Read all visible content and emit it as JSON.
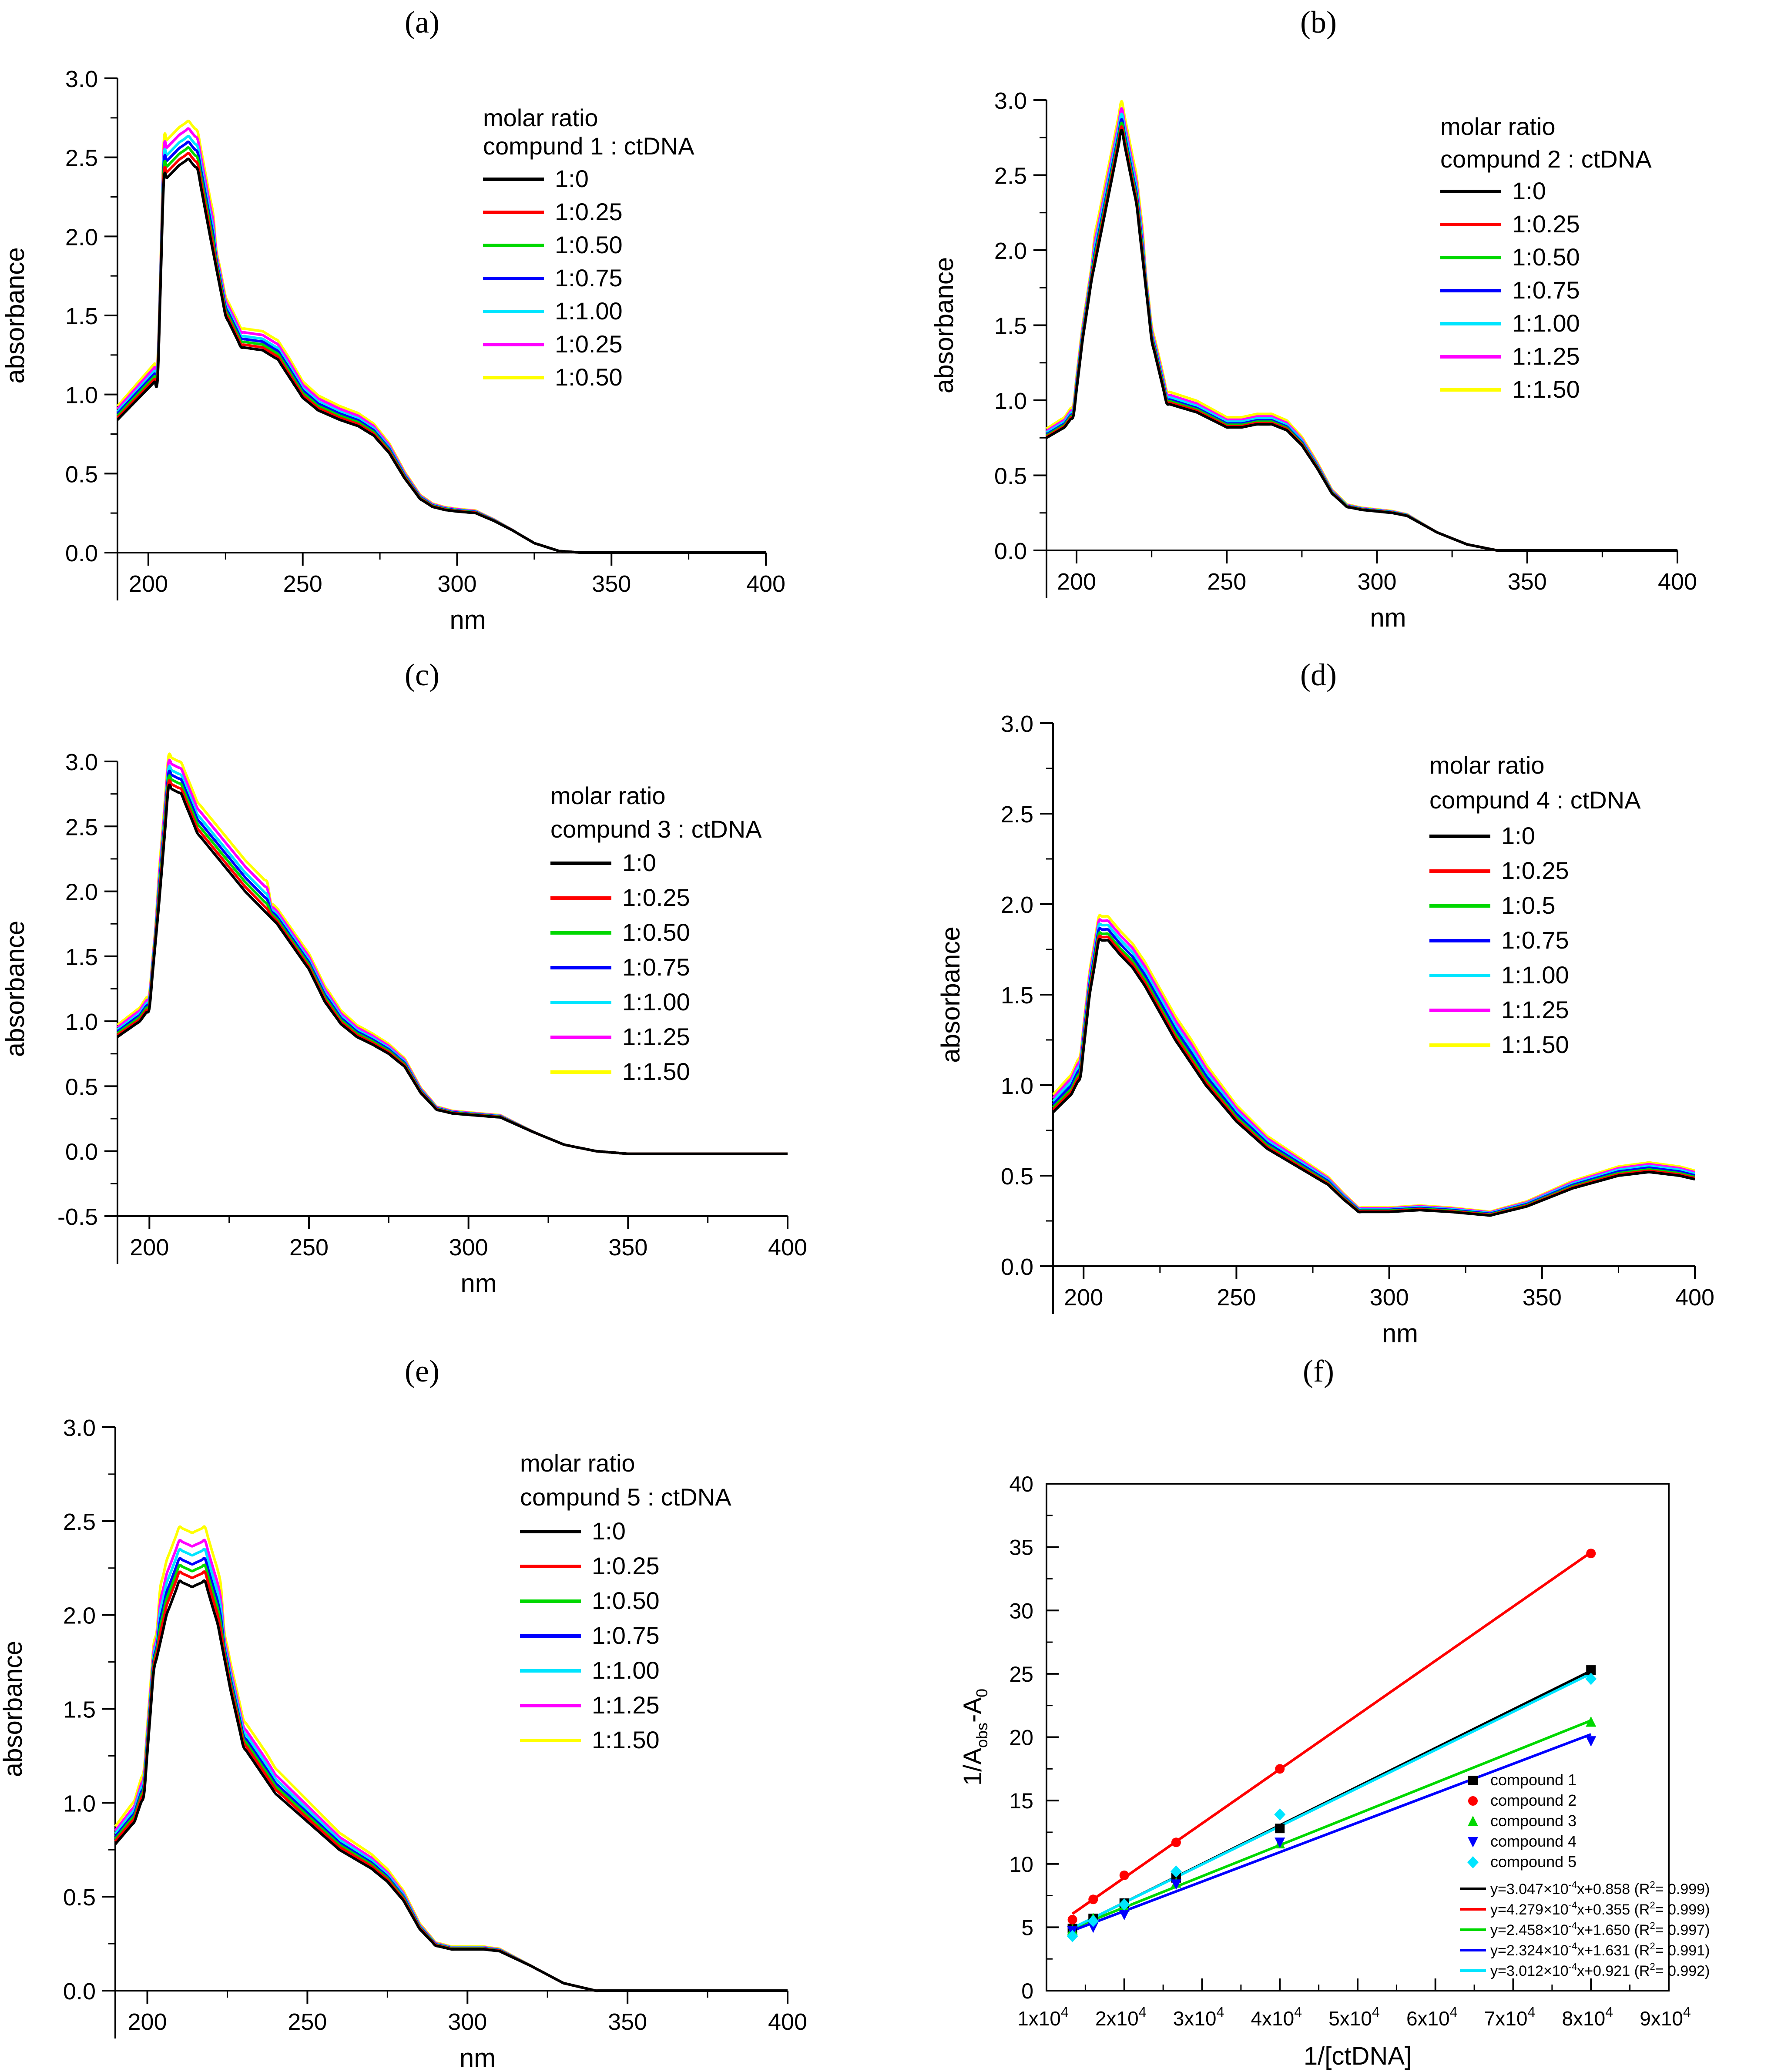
{
  "figure_labels": [
    "(a)",
    "(b)",
    "(c)",
    "(d)",
    "(e)",
    "(f)"
  ],
  "colors": [
    "#000000",
    "#ff0000",
    "#00d800",
    "#0000ff",
    "#00e5ff",
    "#ff00ff",
    "#ffff00"
  ],
  "chart_data": [
    {
      "id": "a",
      "type": "line",
      "xlabel": "nm",
      "ylabel": "absorbance",
      "xlim": [
        190,
        400
      ],
      "ylim": [
        0.0,
        3.0
      ],
      "xticks": [
        "200",
        "250",
        "300",
        "350",
        "400"
      ],
      "yticks": [
        "0.0",
        "0.5",
        "1.0",
        "1.5",
        "2.0",
        "2.5",
        "3.0"
      ],
      "legend_title": [
        "molar ratio",
        "compund 1 : ctDNA"
      ],
      "legend": [
        "1:0",
        "1:0.25",
        "1:0.50",
        "1:0.75",
        "1:1.00",
        "1:0.25",
        "1:0.50"
      ],
      "base_x": [
        190,
        198,
        203,
        205,
        210,
        213,
        216,
        220,
        225,
        230,
        237,
        242,
        250,
        255,
        262,
        268,
        273,
        278,
        283,
        288,
        292,
        296,
        300,
        306,
        312,
        318,
        325,
        333,
        340,
        350,
        400
      ],
      "base_y": [
        0.84,
        1.0,
        1.1,
        2.35,
        2.45,
        2.49,
        2.42,
        2.0,
        1.5,
        1.3,
        1.28,
        1.22,
        0.98,
        0.9,
        0.84,
        0.8,
        0.74,
        0.63,
        0.47,
        0.34,
        0.29,
        0.27,
        0.26,
        0.25,
        0.2,
        0.14,
        0.06,
        0.01,
        0.0,
        0.0,
        0.0
      ],
      "increments": [
        0.0,
        0.03,
        0.06,
        0.09,
        0.12,
        0.16,
        0.2
      ]
    },
    {
      "id": "b",
      "type": "line",
      "xlabel": "nm",
      "ylabel": "absorbance",
      "xlim": [
        190,
        400
      ],
      "ylim": [
        0.0,
        3.0
      ],
      "xticks": [
        "200",
        "250",
        "300",
        "350",
        "400"
      ],
      "yticks": [
        "0.0",
        "0.5",
        "1.0",
        "1.5",
        "2.0",
        "2.5",
        "3.0"
      ],
      "legend_title": [
        "molar ratio",
        "compund 2 : ctDNA"
      ],
      "legend": [
        "1:0",
        "1:0.25",
        "1:0.50",
        "1:0.75",
        "1:1.00",
        "1:1.25",
        "1:1.50"
      ],
      "base_x": [
        190,
        196,
        199,
        202,
        205,
        210,
        215,
        220,
        225,
        230,
        240,
        250,
        255,
        260,
        265,
        270,
        275,
        280,
        285,
        290,
        295,
        300,
        305,
        310,
        320,
        330,
        340,
        350,
        400
      ],
      "base_y": [
        0.75,
        0.82,
        0.9,
        1.4,
        1.8,
        2.3,
        2.8,
        2.3,
        1.4,
        0.98,
        0.92,
        0.82,
        0.82,
        0.84,
        0.84,
        0.8,
        0.7,
        0.55,
        0.38,
        0.29,
        0.27,
        0.26,
        0.25,
        0.23,
        0.12,
        0.04,
        0.0,
        0.0,
        0.0
      ],
      "increments": [
        0.0,
        0.02,
        0.04,
        0.06,
        0.09,
        0.12,
        0.16
      ]
    },
    {
      "id": "c",
      "type": "line",
      "xlabel": "nm",
      "ylabel": "absorbance",
      "xlim": [
        190,
        400
      ],
      "ylim": [
        -0.5,
        3.0
      ],
      "xticks": [
        "200",
        "250",
        "300",
        "350",
        "400"
      ],
      "yticks": [
        "-0.5",
        "0.0",
        "0.5",
        "1.0",
        "1.5",
        "2.0",
        "2.5",
        "3.0"
      ],
      "legend_title": [
        "molar ratio",
        "compund 3 : ctDNA"
      ],
      "legend": [
        "1:0",
        "1:0.25",
        "1:0.50",
        "1:0.75",
        "1:1.00",
        "1:1.25",
        "1:1.50"
      ],
      "base_x": [
        190,
        197,
        200,
        203,
        206,
        210,
        215,
        220,
        230,
        240,
        250,
        255,
        260,
        265,
        270,
        275,
        280,
        285,
        290,
        295,
        300,
        310,
        320,
        330,
        340,
        350,
        400
      ],
      "base_y": [
        0.88,
        1.0,
        1.1,
        1.9,
        2.8,
        2.75,
        2.45,
        2.3,
        2.0,
        1.75,
        1.4,
        1.15,
        0.98,
        0.88,
        0.82,
        0.75,
        0.65,
        0.45,
        0.32,
        0.29,
        0.28,
        0.26,
        0.15,
        0.05,
        0.0,
        -0.02,
        -0.02
      ],
      "increments": [
        0.0,
        0.03,
        0.06,
        0.09,
        0.12,
        0.16,
        0.2
      ]
    },
    {
      "id": "d",
      "type": "line",
      "xlabel": "nm",
      "ylabel": "absorbance",
      "xlim": [
        190,
        400
      ],
      "ylim": [
        0.0,
        3.0
      ],
      "xticks": [
        "200",
        "250",
        "300",
        "350",
        "400"
      ],
      "yticks": [
        "0.0",
        "0.5",
        "1.0",
        "1.5",
        "2.0",
        "2.5",
        "3.0"
      ],
      "legend_title": [
        "molar ratio",
        "compund 4 : ctDNA"
      ],
      "legend": [
        "1:0",
        "1:0.25",
        "1:0.5",
        "1:0.75",
        "1:1.00",
        "1:1.25",
        "1:1.50"
      ],
      "base_x": [
        190,
        196,
        199,
        202,
        205,
        208,
        212,
        216,
        220,
        230,
        240,
        250,
        260,
        265,
        270,
        275,
        280,
        285,
        290,
        295,
        300,
        310,
        320,
        333,
        345,
        360,
        375,
        385,
        395,
        400
      ],
      "base_y": [
        0.85,
        0.95,
        1.05,
        1.5,
        1.8,
        1.8,
        1.72,
        1.65,
        1.55,
        1.25,
        1.0,
        0.8,
        0.65,
        0.6,
        0.55,
        0.5,
        0.45,
        0.37,
        0.3,
        0.3,
        0.3,
        0.31,
        0.3,
        0.28,
        0.33,
        0.43,
        0.5,
        0.52,
        0.5,
        0.48
      ],
      "increments": [
        0.0,
        0.03,
        0.06,
        0.1,
        0.14,
        0.18,
        0.22
      ]
    },
    {
      "id": "e",
      "type": "line",
      "xlabel": "nm",
      "ylabel": "absorbance",
      "xlim": [
        190,
        400
      ],
      "ylim": [
        0.0,
        3.0
      ],
      "xticks": [
        "200",
        "250",
        "300",
        "350",
        "400"
      ],
      "yticks": [
        "0.0",
        "0.5",
        "1.0",
        "1.5",
        "2.0",
        "2.5",
        "3.0"
      ],
      "legend_title": [
        "molar ratio",
        "compund 5 : ctDNA"
      ],
      "legend": [
        "1:0",
        "1:0.25",
        "1:0.50",
        "1:0.75",
        "1:1.00",
        "1:1.25",
        "1:1.50"
      ],
      "base_x": [
        190,
        196,
        199,
        202,
        206,
        210,
        214,
        218,
        222,
        226,
        230,
        240,
        250,
        260,
        265,
        270,
        275,
        280,
        285,
        290,
        295,
        300,
        305,
        310,
        320,
        330,
        340,
        350,
        400
      ],
      "base_y": [
        0.78,
        0.9,
        1.05,
        1.7,
        2.0,
        2.18,
        2.15,
        2.18,
        1.95,
        1.6,
        1.3,
        1.05,
        0.9,
        0.75,
        0.7,
        0.65,
        0.58,
        0.48,
        0.33,
        0.24,
        0.22,
        0.22,
        0.22,
        0.21,
        0.13,
        0.04,
        0.0,
        0.0,
        0.0
      ],
      "increments": [
        0.0,
        0.04,
        0.07,
        0.1,
        0.14,
        0.18,
        0.24
      ]
    },
    {
      "id": "f",
      "type": "scatter",
      "xlabel": "1/[ctDNA]",
      "ylabel_main": "1/A",
      "ylabel_sub1": "obs",
      "ylabel_mid": "-A",
      "ylabel_sub2": "0",
      "xlim": [
        10000,
        90000
      ],
      "ylim": [
        0,
        40
      ],
      "xtick_values": [
        10000,
        20000,
        30000,
        40000,
        50000,
        60000,
        70000,
        80000,
        90000
      ],
      "xticks_mantissa": [
        "1x10",
        "2x10",
        "3x10",
        "4x10",
        "5x10",
        "6x10",
        "7x10",
        "8x10",
        "9x10"
      ],
      "xtick_exp": "4",
      "yticks": [
        "0",
        "5",
        "10",
        "15",
        "20",
        "25",
        "30",
        "35",
        "40"
      ],
      "x": [
        13333,
        16000,
        20000,
        26667,
        40000,
        80000
      ],
      "series": [
        {
          "name": "compound 1",
          "marker": "square",
          "y": [
            4.9,
            5.7,
            6.9,
            8.9,
            12.8,
            25.3
          ],
          "slope": 0.0003047,
          "intercept": 0.858,
          "fit_label": [
            "y=3.047×10",
            "-4",
            "x+0.858 (R",
            "2",
            "= 0.999)"
          ]
        },
        {
          "name": "compound 2",
          "marker": "circle",
          "y": [
            5.6,
            7.2,
            9.1,
            11.7,
            17.5,
            34.5
          ],
          "slope": 0.0004279,
          "intercept": 0.355,
          "fit_label": [
            "y=4.279×10",
            "-4",
            "x+0.355 (R",
            "2",
            "= 0.999)"
          ]
        },
        {
          "name": "compound 3",
          "marker": "triangle-up",
          "y": [
            4.8,
            5.7,
            6.6,
            8.5,
            11.6,
            21.2
          ],
          "slope": 0.0002458,
          "intercept": 1.65,
          "fit_label": [
            "y=2.458×10",
            "-4",
            "x+1.650 (R",
            "2",
            "= 0.997)"
          ]
        },
        {
          "name": "compound 4",
          "marker": "triangle-down",
          "y": [
            4.7,
            5.0,
            6.0,
            8.4,
            11.7,
            19.7
          ],
          "slope": 0.0002324,
          "intercept": 1.631,
          "fit_label": [
            "y=2.324×10",
            "-4",
            "x+1.631 (R",
            "2",
            "= 0.991)"
          ]
        },
        {
          "name": "compound 5",
          "marker": "diamond",
          "y": [
            4.3,
            5.5,
            6.8,
            9.4,
            13.9,
            24.6
          ],
          "slope": 0.0003012,
          "intercept": 0.921,
          "fit_label": [
            "y=3.012×10",
            "-4",
            "x+0.921 (R",
            "2",
            "= 0.992)"
          ]
        }
      ],
      "series_colors": [
        "#000000",
        "#ff0000",
        "#00d800",
        "#0000ff",
        "#00e5ff"
      ]
    }
  ]
}
